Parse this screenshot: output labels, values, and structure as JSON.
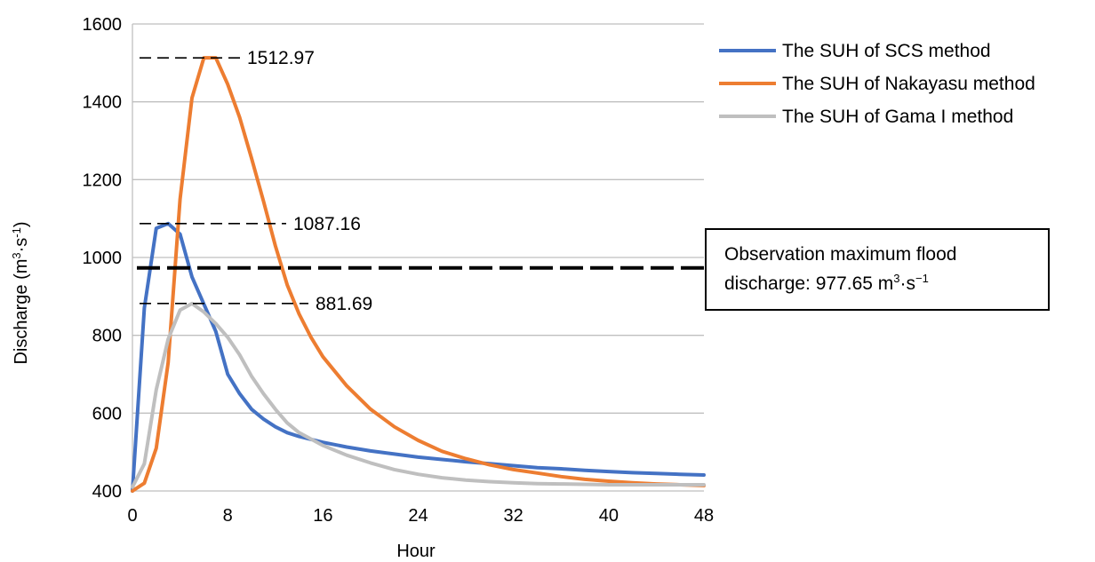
{
  "chart_data": {
    "type": "line",
    "xlabel": "Hour",
    "ylabel": "Discharge (m³·s⁻¹)",
    "ylabel_parts": {
      "base": "Discharge (m",
      "sup1": "3",
      "mid": "·s",
      "sup2": "-1",
      "end": ")"
    },
    "xlim": [
      0,
      48
    ],
    "ylim": [
      400,
      1600
    ],
    "x_ticks": [
      0,
      8,
      16,
      24,
      32,
      40,
      48
    ],
    "y_ticks": [
      400,
      600,
      800,
      1000,
      1200,
      1400,
      1600
    ],
    "grid": "horizontal",
    "legend_position": "top-right",
    "series": [
      {
        "name": "The SUH of SCS method",
        "color": "#4472c4",
        "x": [
          0,
          1,
          2,
          3,
          4,
          5,
          6,
          7,
          8,
          9,
          10,
          11,
          12,
          13,
          14,
          16,
          18,
          20,
          22,
          24,
          26,
          28,
          30,
          32,
          34,
          36,
          38,
          40,
          42,
          44,
          46,
          48
        ],
        "y": [
          400,
          870,
          1075,
          1087.16,
          1060,
          950,
          880,
          810,
          700,
          650,
          610,
          585,
          565,
          550,
          540,
          525,
          513,
          503,
          495,
          487,
          481,
          475,
          470,
          465,
          460,
          457,
          453,
          450,
          447,
          445,
          443,
          441
        ]
      },
      {
        "name": "The SUH of Nakayasu method",
        "color": "#ed7d31",
        "x": [
          0,
          1,
          2,
          3,
          4,
          5,
          6,
          7,
          8,
          9,
          10,
          11,
          12,
          13,
          14,
          15,
          16,
          18,
          20,
          22,
          24,
          26,
          28,
          30,
          32,
          34,
          36,
          38,
          40,
          42,
          44,
          46,
          48
        ],
        "y": [
          400,
          420,
          510,
          730,
          1150,
          1410,
          1512.97,
          1512.97,
          1445,
          1360,
          1255,
          1145,
          1030,
          930,
          855,
          795,
          745,
          670,
          610,
          565,
          530,
          502,
          483,
          467,
          455,
          446,
          437,
          430,
          425,
          421,
          418,
          416,
          414
        ]
      },
      {
        "name": "The SUH of Gama I method",
        "color": "#bfbfbf",
        "x": [
          0,
          1,
          2,
          3,
          4,
          5,
          6,
          7,
          8,
          9,
          10,
          11,
          12,
          13,
          14,
          16,
          18,
          20,
          22,
          24,
          26,
          28,
          30,
          32,
          34,
          36,
          38,
          40,
          42,
          44,
          46,
          48
        ],
        "y": [
          410,
          470,
          660,
          790,
          865,
          881.69,
          860,
          830,
          795,
          750,
          695,
          650,
          610,
          575,
          550,
          517,
          492,
          472,
          455,
          443,
          434,
          428,
          424,
          421,
          419,
          418,
          417,
          416,
          416,
          416,
          416,
          416
        ]
      }
    ],
    "peak_annotations": [
      {
        "label": "1512.97",
        "value": 1512.97
      },
      {
        "label": "1087.16",
        "value": 1087.16
      },
      {
        "label": "881.69",
        "value": 881.69
      }
    ],
    "observation_line": {
      "value": 977.65,
      "label_line1": "Observation maximum flood",
      "label_line2_prefix": "discharge: 977.65 m",
      "label_sup1": "3",
      "label_mid": "·s",
      "label_sup2": "−1"
    }
  }
}
